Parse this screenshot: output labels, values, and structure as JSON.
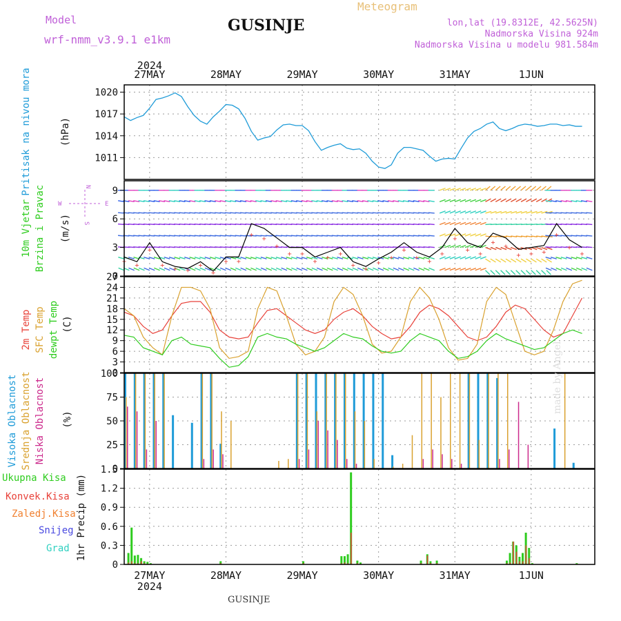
{
  "header": {
    "model_label": "Model",
    "model_name": "wrf-nmm_v3.9.1  e1km",
    "station": "GUSINJE",
    "meteogram_label": "Meteogram",
    "location": "lon,lat (19.8312E, 42.5625N)",
    "elevation": "Nadmorska Visina 924m",
    "model_elevation": "Nadmorska Visina u modelu 981.584m"
  },
  "footer": {
    "station": "GUSINJE",
    "watermark": "made by Angel"
  },
  "colors": {
    "pressure": "#1e9bd8",
    "temp2m": "#e8423a",
    "sfc": "#d9a12e",
    "dewpt": "#2ecc1e",
    "cloud_high": "#1e9bd8",
    "cloud_mid": "#d9a12e",
    "cloud_low": "#cc2a8c",
    "precip_total": "#2ecc1e",
    "precip_conv": "#e8423a",
    "precip_frozen": "#f08030",
    "snow": "#4848e0",
    "graupel": "#30d0c0",
    "label_purple": "#c060d8",
    "label_gold": "#e8c078"
  },
  "chart_data": [
    {
      "type": "line",
      "panel": "pressure",
      "ylabel": "Pritisak na nivou mora",
      "unit": "(hPa)",
      "ylim": [
        1008,
        1021
      ],
      "yticks": [
        1011,
        1014,
        1017,
        1020
      ],
      "x": [
        0,
        2,
        4,
        6,
        8,
        10,
        12,
        14,
        16,
        18,
        20,
        22,
        24,
        26,
        28,
        30,
        32,
        34,
        36,
        38,
        40,
        42,
        44,
        46,
        48,
        50,
        52,
        54,
        56,
        58,
        60,
        62,
        64,
        66,
        68,
        70,
        72,
        74,
        76,
        78,
        80,
        82,
        84,
        86,
        88,
        90,
        92,
        94,
        96,
        98,
        100,
        102,
        104,
        106,
        108,
        110,
        112,
        114,
        116,
        118,
        120,
        122,
        124,
        126,
        128,
        130,
        132,
        134,
        136,
        138,
        140,
        142,
        144
      ],
      "values": [
        1016.6,
        1016.1,
        1016.5,
        1016.8,
        1017.8,
        1019.0,
        1019.2,
        1019.5,
        1019.9,
        1019.4,
        1018.0,
        1016.8,
        1016.0,
        1015.6,
        1016.6,
        1017.4,
        1018.3,
        1018.2,
        1017.7,
        1016.4,
        1014.6,
        1013.4,
        1013.7,
        1013.9,
        1014.8,
        1015.5,
        1015.6,
        1015.4,
        1015.4,
        1014.7,
        1013.2,
        1012.0,
        1012.4,
        1012.7,
        1012.9,
        1012.3,
        1012.1,
        1012.2,
        1011.6,
        1010.5,
        1009.7,
        1009.5,
        1010.0,
        1011.6,
        1012.4,
        1012.4,
        1012.2,
        1012.0,
        1011.2,
        1010.5,
        1010.8,
        1010.9,
        1010.8,
        1012.3,
        1013.7,
        1014.6,
        1015.0,
        1015.6,
        1015.9,
        1015.0,
        1014.7,
        1015.0,
        1015.4,
        1015.6,
        1015.5,
        1015.3,
        1015.4,
        1015.6,
        1015.6,
        1015.4,
        1015.5,
        1015.3,
        1015.3
      ],
      "series_name": "pressure"
    },
    {
      "type": "line",
      "panel": "wind",
      "ylabel": "10m Vjetar Brzina i Pravac",
      "unit": "(m/s)",
      "ylim": [
        0,
        10
      ],
      "yticks": [
        0,
        3,
        6,
        9
      ],
      "compass": [
        "N",
        "E",
        "S",
        "W"
      ],
      "x": [
        0,
        4,
        8,
        12,
        16,
        20,
        24,
        28,
        32,
        36,
        40,
        44,
        48,
        52,
        56,
        60,
        64,
        68,
        72,
        76,
        80,
        84,
        88,
        92,
        96,
        100,
        104,
        108,
        112,
        116,
        120,
        124,
        128,
        132,
        136,
        140,
        144
      ],
      "values": [
        2.0,
        1.5,
        3.5,
        1.5,
        1.0,
        0.8,
        1.5,
        0.5,
        2.0,
        2.0,
        5.5,
        5.0,
        4.0,
        3.0,
        3.0,
        2.0,
        2.5,
        3.0,
        1.5,
        1.0,
        1.8,
        2.5,
        3.5,
        2.5,
        2.0,
        3.0,
        5.0,
        3.5,
        3.0,
        4.5,
        4.0,
        2.8,
        3.0,
        3.2,
        5.5,
        3.8,
        3.0
      ]
    },
    {
      "type": "line",
      "panel": "temperature",
      "ylabel": "2m Temp / SFC Temp / dewpt Temp",
      "unit": "(C)",
      "ylim": [
        0,
        27
      ],
      "yticks": [
        0,
        3,
        6,
        9,
        12,
        15,
        18,
        21,
        24,
        27
      ],
      "x": [
        0,
        3,
        6,
        9,
        12,
        15,
        18,
        21,
        24,
        27,
        30,
        33,
        36,
        39,
        42,
        45,
        48,
        51,
        54,
        57,
        60,
        63,
        66,
        69,
        72,
        75,
        78,
        81,
        84,
        87,
        90,
        93,
        96,
        99,
        102,
        105,
        108,
        111,
        114,
        117,
        120,
        123,
        126,
        129,
        132,
        135,
        138,
        141,
        144
      ],
      "series": [
        {
          "name": "2m Temp",
          "values": [
            17,
            16,
            13,
            11,
            12,
            16,
            19.5,
            20,
            20,
            17,
            12,
            10,
            9.5,
            10,
            14,
            17.5,
            18,
            16,
            14,
            12,
            11,
            12,
            15,
            17,
            18,
            16,
            13,
            11,
            9.5,
            10,
            13,
            17,
            19,
            18,
            16,
            13,
            10,
            9,
            10,
            13,
            17,
            19,
            18,
            15,
            12,
            10,
            11,
            16,
            21
          ]
        },
        {
          "name": "SFC Temp",
          "values": [
            18,
            16,
            10,
            7,
            5,
            16,
            24,
            24,
            23,
            18,
            7,
            4,
            4.5,
            6,
            18,
            24,
            23,
            16,
            8,
            5,
            6,
            10,
            20,
            24,
            22,
            16,
            8,
            5.5,
            6,
            10,
            20,
            24,
            21,
            15,
            7,
            3.5,
            4,
            8,
            20,
            24,
            22,
            14,
            6,
            5,
            6,
            12,
            20,
            25,
            26
          ]
        },
        {
          "name": "dewpt Temp",
          "values": [
            10.5,
            10,
            7,
            6,
            5,
            9,
            10,
            8,
            7.5,
            7,
            4,
            1.5,
            2,
            4.5,
            10,
            11,
            10,
            9.5,
            8,
            7,
            6,
            7,
            9,
            11,
            10,
            9.5,
            7.5,
            6,
            5.5,
            6,
            9,
            11,
            10,
            9,
            6,
            4,
            4.5,
            6,
            9,
            11,
            9.5,
            8.5,
            7.5,
            6.5,
            7,
            9,
            11,
            12,
            11
          ]
        }
      ]
    },
    {
      "type": "bar",
      "panel": "clouds",
      "ylabel": "Visoka Oblacnost / Srednja Oblacnost / Niska Oblacnost",
      "unit": "(%)",
      "ylim": [
        0,
        100
      ],
      "yticks": [
        0,
        25,
        50,
        75,
        100
      ],
      "x": [
        0,
        3,
        6,
        9,
        12,
        15,
        18,
        21,
        24,
        27,
        30,
        33,
        36,
        39,
        42,
        45,
        48,
        51,
        54,
        57,
        60,
        63,
        66,
        69,
        72,
        75,
        78,
        81,
        84,
        87,
        90,
        93,
        96,
        99,
        102,
        105,
        108,
        111,
        114,
        117,
        120,
        123,
        126,
        129,
        132,
        135,
        138,
        141,
        144
      ],
      "series": [
        {
          "name": "Visoka Oblacnost",
          "values": [
            100,
            100,
            100,
            100,
            100,
            56,
            0,
            48,
            100,
            100,
            26,
            0,
            0,
            0,
            0,
            0,
            0,
            0,
            100,
            100,
            100,
            100,
            100,
            100,
            100,
            100,
            100,
            100,
            14,
            0,
            0,
            0,
            0,
            0,
            0,
            0,
            100,
            100,
            100,
            95,
            0,
            0,
            0,
            0,
            0,
            42,
            0,
            6,
            0
          ]
        },
        {
          "name": "Srednja Oblacnost",
          "values": [
            75,
            100,
            100,
            100,
            100,
            0,
            0,
            0,
            100,
            100,
            60,
            50,
            0,
            0,
            0,
            0,
            8,
            10,
            100,
            100,
            60,
            100,
            100,
            100,
            60,
            50,
            10,
            0,
            2,
            5,
            35,
            100,
            100,
            75,
            100,
            100,
            100,
            30,
            100,
            100,
            100,
            0,
            0,
            0,
            0,
            0,
            100,
            0,
            0
          ]
        },
        {
          "name": "Niska Oblacnost",
          "values": [
            65,
            60,
            20,
            50,
            0,
            0,
            0,
            0,
            10,
            20,
            15,
            0,
            0,
            0,
            0,
            0,
            0,
            0,
            10,
            20,
            50,
            40,
            30,
            10,
            5,
            0,
            0,
            0,
            0,
            0,
            0,
            10,
            20,
            15,
            10,
            5,
            0,
            0,
            0,
            10,
            20,
            70,
            25,
            0,
            0,
            0,
            0,
            0,
            0
          ]
        }
      ]
    },
    {
      "type": "bar",
      "panel": "precipitation",
      "ylabel": "1hr Precip (mm)",
      "ylim": [
        0,
        1.5
      ],
      "yticks": [
        0,
        0.3,
        0.6,
        0.9,
        1.2,
        1.5
      ],
      "legend": [
        "Ukupna Kisa",
        "Konvek.Kisa",
        "Zaledj.Kisa",
        "Snijeg",
        "Grad"
      ],
      "x": [
        1,
        2,
        3,
        4,
        5,
        6,
        7,
        8,
        30,
        56,
        68,
        69,
        70,
        71,
        73,
        74,
        93,
        95,
        96,
        98,
        120,
        121,
        122,
        123,
        124,
        125,
        126,
        127,
        128,
        142
      ],
      "series": [
        {
          "name": "Ukupna Kisa",
          "values": [
            0.18,
            0.58,
            0.14,
            0.15,
            0.1,
            0.05,
            0.04,
            0.02,
            0.05,
            0.05,
            0.13,
            0.13,
            0.16,
            1.45,
            0.06,
            0.03,
            0.06,
            0.16,
            0.05,
            0.06,
            0.06,
            0.18,
            0.36,
            0.3,
            0.12,
            0.18,
            0.5,
            0.26,
            0.02,
            0.02
          ]
        },
        {
          "name": "Konvek.Kisa",
          "values": [
            0.03,
            0.05,
            0.02,
            0.02,
            0.05,
            0.02,
            0.01,
            0.01,
            0.02,
            0.02,
            0.02,
            0.03,
            0.02,
            0.5,
            0.02,
            0.01,
            0.02,
            0.14,
            0.02,
            0.02,
            0.02,
            0.03,
            0.36,
            0.2,
            0.05,
            0.05,
            0.3,
            0.1,
            0.01,
            0.01
          ]
        }
      ]
    }
  ],
  "axes": {
    "day_labels": [
      "27MAY",
      "28MAY",
      "29MAY",
      "30MAY",
      "31MAY",
      "1JUN"
    ],
    "year": "2024",
    "x_range_hours": [
      0,
      148
    ]
  },
  "panel_labels": {
    "pressure": [
      "Pritisak na nivou mora"
    ],
    "wind": [
      "10m Vjetar",
      "Brzina i Pravac"
    ],
    "temp": [
      "2m Temp",
      "SFC Temp",
      "dewpt Temp"
    ],
    "cloud": [
      "Visoka Oblacnost",
      "Srednja Oblacnost",
      "Niska Oblacnost"
    ]
  }
}
